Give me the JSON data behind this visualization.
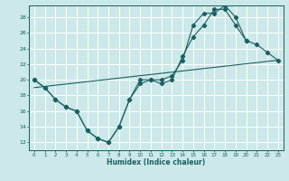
{
  "xlabel": "Humidex (Indice chaleur)",
  "xlim": [
    -0.5,
    23.5
  ],
  "ylim": [
    11,
    29.5
  ],
  "yticks": [
    12,
    14,
    16,
    18,
    20,
    22,
    24,
    26,
    28
  ],
  "xticks": [
    0,
    1,
    2,
    3,
    4,
    5,
    6,
    7,
    8,
    9,
    10,
    11,
    12,
    13,
    14,
    15,
    16,
    17,
    18,
    19,
    20,
    21,
    22,
    23
  ],
  "bg_color": "#cce8e8",
  "grid_color": "#ffffff",
  "line_color": "#1a6060",
  "series": [
    {
      "x": [
        0,
        1,
        2,
        3,
        4,
        5,
        6,
        7,
        8,
        9,
        10,
        11,
        12,
        13,
        14,
        15,
        16,
        17,
        18,
        19,
        20,
        21,
        22,
        23
      ],
      "y": [
        20,
        19,
        17.5,
        16.5,
        16,
        13.5,
        12.5,
        12,
        14,
        17.5,
        20,
        20,
        19.5,
        20,
        23,
        25.5,
        27,
        29,
        29,
        27,
        25,
        24.5,
        23.5,
        22.5
      ]
    },
    {
      "x": [
        0,
        1,
        2,
        3,
        4,
        5,
        6,
        7,
        8,
        9,
        10,
        11,
        12,
        13,
        14,
        15,
        16,
        17,
        18,
        19,
        20
      ],
      "y": [
        20,
        19,
        17.5,
        16.5,
        16,
        13.5,
        12.5,
        12,
        14,
        17.5,
        19.5,
        20,
        20,
        20.5,
        22.5,
        27,
        28.5,
        28.5,
        29.5,
        28,
        25
      ]
    },
    {
      "x": [
        0,
        23
      ],
      "y": [
        19,
        22.5
      ]
    }
  ],
  "marker": "D",
  "marker_size": 2.2
}
